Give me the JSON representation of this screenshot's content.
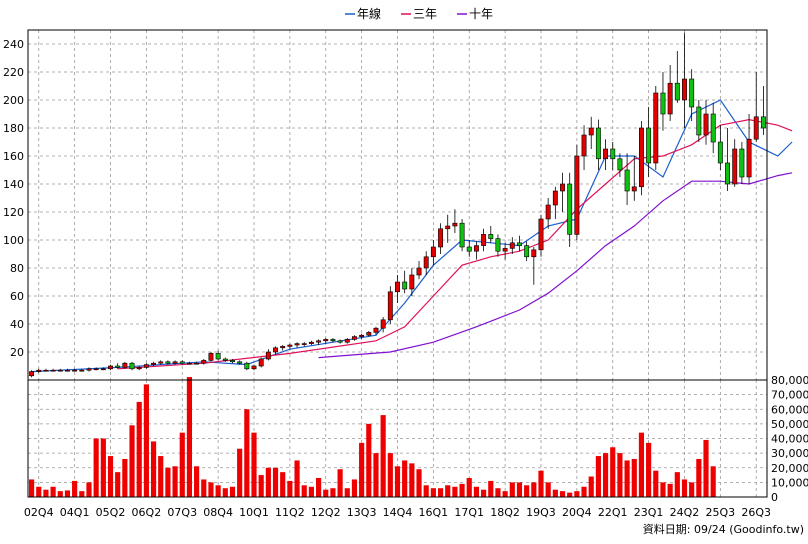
{
  "chart_data": [
    {
      "type": "candlestick",
      "legend": [
        {
          "name": "年線",
          "color": "#1a5fd0"
        },
        {
          "name": "三年",
          "color": "#e0105a"
        },
        {
          "name": "十年",
          "color": "#8010d0"
        }
      ],
      "ylim": [
        0,
        250
      ],
      "yticks": [
        20,
        40,
        60,
        80,
        100,
        120,
        140,
        160,
        180,
        200,
        220,
        240
      ],
      "xticks": [
        "02Q4",
        "04Q1",
        "05Q2",
        "06Q2",
        "07Q3",
        "08Q4",
        "10Q1",
        "11Q2",
        "12Q2",
        "13Q3",
        "14Q4",
        "16Q1",
        "17Q1",
        "18Q2",
        "19Q3",
        "20Q4",
        "22Q1",
        "23Q1",
        "24Q2",
        "25Q3",
        "26Q3"
      ],
      "grid": true,
      "legend_position": "top-center",
      "candles": [
        {
          "o": 3,
          "h": 7,
          "l": 2,
          "c": 6
        },
        {
          "o": 6,
          "h": 8,
          "l": 5,
          "c": 7
        },
        {
          "o": 7,
          "h": 8,
          "l": 6,
          "c": 7
        },
        {
          "o": 7,
          "h": 8,
          "l": 6,
          "c": 7
        },
        {
          "o": 7,
          "h": 8,
          "l": 6,
          "c": 7
        },
        {
          "o": 7,
          "h": 8,
          "l": 6,
          "c": 7
        },
        {
          "o": 7,
          "h": 8,
          "l": 6,
          "c": 7
        },
        {
          "o": 7,
          "h": 8,
          "l": 6,
          "c": 7
        },
        {
          "o": 7,
          "h": 9,
          "l": 6,
          "c": 8
        },
        {
          "o": 8,
          "h": 9,
          "l": 7,
          "c": 8
        },
        {
          "o": 8,
          "h": 9,
          "l": 7,
          "c": 8
        },
        {
          "o": 8,
          "h": 11,
          "l": 7,
          "c": 10
        },
        {
          "o": 10,
          "h": 12,
          "l": 8,
          "c": 9
        },
        {
          "o": 9,
          "h": 13,
          "l": 8,
          "c": 12
        },
        {
          "o": 12,
          "h": 13,
          "l": 7,
          "c": 8
        },
        {
          "o": 8,
          "h": 10,
          "l": 7,
          "c": 9
        },
        {
          "o": 9,
          "h": 12,
          "l": 8,
          "c": 11
        },
        {
          "o": 11,
          "h": 13,
          "l": 10,
          "c": 12
        },
        {
          "o": 12,
          "h": 14,
          "l": 11,
          "c": 13
        },
        {
          "o": 13,
          "h": 14,
          "l": 11,
          "c": 12
        },
        {
          "o": 12,
          "h": 14,
          "l": 11,
          "c": 13
        },
        {
          "o": 13,
          "h": 14,
          "l": 11,
          "c": 12
        },
        {
          "o": 12,
          "h": 13,
          "l": 11,
          "c": 12
        },
        {
          "o": 12,
          "h": 13,
          "l": 11,
          "c": 12
        },
        {
          "o": 12,
          "h": 15,
          "l": 11,
          "c": 14
        },
        {
          "o": 14,
          "h": 20,
          "l": 13,
          "c": 19
        },
        {
          "o": 19,
          "h": 21,
          "l": 14,
          "c": 15
        },
        {
          "o": 15,
          "h": 16,
          "l": 13,
          "c": 14
        },
        {
          "o": 14,
          "h": 15,
          "l": 12,
          "c": 13
        },
        {
          "o": 13,
          "h": 14,
          "l": 11,
          "c": 12
        },
        {
          "o": 12,
          "h": 13,
          "l": 7,
          "c": 8
        },
        {
          "o": 8,
          "h": 11,
          "l": 7,
          "c": 10
        },
        {
          "o": 10,
          "h": 16,
          "l": 9,
          "c": 15
        },
        {
          "o": 15,
          "h": 22,
          "l": 14,
          "c": 20
        },
        {
          "o": 20,
          "h": 24,
          "l": 18,
          "c": 23
        },
        {
          "o": 23,
          "h": 25,
          "l": 21,
          "c": 24
        },
        {
          "o": 24,
          "h": 26,
          "l": 22,
          "c": 25
        },
        {
          "o": 25,
          "h": 27,
          "l": 23,
          "c": 26
        },
        {
          "o": 26,
          "h": 27,
          "l": 24,
          "c": 26
        },
        {
          "o": 26,
          "h": 28,
          "l": 25,
          "c": 27
        },
        {
          "o": 27,
          "h": 29,
          "l": 25,
          "c": 28
        },
        {
          "o": 28,
          "h": 30,
          "l": 26,
          "c": 29
        },
        {
          "o": 29,
          "h": 30,
          "l": 27,
          "c": 28
        },
        {
          "o": 28,
          "h": 29,
          "l": 26,
          "c": 27
        },
        {
          "o": 27,
          "h": 30,
          "l": 26,
          "c": 29
        },
        {
          "o": 29,
          "h": 32,
          "l": 28,
          "c": 31
        },
        {
          "o": 31,
          "h": 33,
          "l": 29,
          "c": 32
        },
        {
          "o": 32,
          "h": 35,
          "l": 31,
          "c": 34
        },
        {
          "o": 34,
          "h": 38,
          "l": 32,
          "c": 37
        },
        {
          "o": 37,
          "h": 45,
          "l": 34,
          "c": 43
        },
        {
          "o": 43,
          "h": 67,
          "l": 40,
          "c": 63
        },
        {
          "o": 63,
          "h": 75,
          "l": 55,
          "c": 70
        },
        {
          "o": 70,
          "h": 78,
          "l": 62,
          "c": 65
        },
        {
          "o": 65,
          "h": 80,
          "l": 60,
          "c": 75
        },
        {
          "o": 75,
          "h": 85,
          "l": 72,
          "c": 80
        },
        {
          "o": 80,
          "h": 92,
          "l": 75,
          "c": 88
        },
        {
          "o": 88,
          "h": 100,
          "l": 82,
          "c": 95
        },
        {
          "o": 95,
          "h": 112,
          "l": 90,
          "c": 108
        },
        {
          "o": 108,
          "h": 118,
          "l": 98,
          "c": 110
        },
        {
          "o": 110,
          "h": 122,
          "l": 105,
          "c": 112
        },
        {
          "o": 112,
          "h": 115,
          "l": 92,
          "c": 95
        },
        {
          "o": 95,
          "h": 100,
          "l": 88,
          "c": 92
        },
        {
          "o": 92,
          "h": 99,
          "l": 86,
          "c": 96
        },
        {
          "o": 96,
          "h": 108,
          "l": 92,
          "c": 104
        },
        {
          "o": 104,
          "h": 110,
          "l": 98,
          "c": 101
        },
        {
          "o": 101,
          "h": 104,
          "l": 88,
          "c": 92
        },
        {
          "o": 92,
          "h": 98,
          "l": 86,
          "c": 94
        },
        {
          "o": 94,
          "h": 102,
          "l": 90,
          "c": 98
        },
        {
          "o": 98,
          "h": 103,
          "l": 92,
          "c": 96
        },
        {
          "o": 96,
          "h": 99,
          "l": 85,
          "c": 88
        },
        {
          "o": 88,
          "h": 95,
          "l": 68,
          "c": 93
        },
        {
          "o": 93,
          "h": 118,
          "l": 88,
          "c": 115
        },
        {
          "o": 115,
          "h": 130,
          "l": 108,
          "c": 125
        },
        {
          "o": 125,
          "h": 138,
          "l": 115,
          "c": 135
        },
        {
          "o": 135,
          "h": 148,
          "l": 120,
          "c": 140
        },
        {
          "o": 140,
          "h": 148,
          "l": 95,
          "c": 104
        },
        {
          "o": 104,
          "h": 168,
          "l": 100,
          "c": 160
        },
        {
          "o": 160,
          "h": 182,
          "l": 150,
          "c": 175
        },
        {
          "o": 175,
          "h": 188,
          "l": 165,
          "c": 180
        },
        {
          "o": 180,
          "h": 186,
          "l": 150,
          "c": 158
        },
        {
          "o": 158,
          "h": 172,
          "l": 150,
          "c": 165
        },
        {
          "o": 165,
          "h": 170,
          "l": 150,
          "c": 158
        },
        {
          "o": 158,
          "h": 162,
          "l": 145,
          "c": 150
        },
        {
          "o": 150,
          "h": 162,
          "l": 125,
          "c": 135
        },
        {
          "o": 135,
          "h": 160,
          "l": 128,
          "c": 138
        },
        {
          "o": 138,
          "h": 185,
          "l": 132,
          "c": 180
        },
        {
          "o": 180,
          "h": 195,
          "l": 145,
          "c": 155
        },
        {
          "o": 155,
          "h": 210,
          "l": 150,
          "c": 205
        },
        {
          "o": 205,
          "h": 220,
          "l": 178,
          "c": 190
        },
        {
          "o": 190,
          "h": 225,
          "l": 185,
          "c": 212
        },
        {
          "o": 212,
          "h": 235,
          "l": 198,
          "c": 200
        },
        {
          "o": 200,
          "h": 248,
          "l": 180,
          "c": 215
        },
        {
          "o": 215,
          "h": 222,
          "l": 185,
          "c": 195
        },
        {
          "o": 195,
          "h": 200,
          "l": 170,
          "c": 175
        },
        {
          "o": 175,
          "h": 200,
          "l": 168,
          "c": 190
        },
        {
          "o": 190,
          "h": 198,
          "l": 162,
          "c": 170
        },
        {
          "o": 170,
          "h": 182,
          "l": 150,
          "c": 155
        },
        {
          "o": 155,
          "h": 180,
          "l": 135,
          "c": 140
        },
        {
          "o": 140,
          "h": 172,
          "l": 138,
          "c": 165
        },
        {
          "o": 165,
          "h": 170,
          "l": 140,
          "c": 145
        },
        {
          "o": 145,
          "h": 190,
          "l": 140,
          "c": 172
        },
        {
          "o": 172,
          "h": 220,
          "l": 170,
          "c": 188
        },
        {
          "o": 188,
          "h": 210,
          "l": 175,
          "c": 180
        }
      ],
      "ma_year": [
        [
          0,
          6
        ],
        [
          12,
          9
        ],
        [
          24,
          13
        ],
        [
          30,
          11
        ],
        [
          36,
          22
        ],
        [
          48,
          32
        ],
        [
          52,
          55
        ],
        [
          56,
          82
        ],
        [
          60,
          100
        ],
        [
          64,
          98
        ],
        [
          68,
          96
        ],
        [
          72,
          110
        ],
        [
          76,
          115
        ],
        [
          80,
          160
        ],
        [
          84,
          160
        ],
        [
          88,
          145
        ],
        [
          92,
          190
        ],
        [
          96,
          200
        ],
        [
          100,
          170
        ],
        [
          104,
          160
        ],
        [
          106,
          170
        ]
      ],
      "ma_3yr": [
        [
          12,
          8
        ],
        [
          24,
          12
        ],
        [
          36,
          19
        ],
        [
          48,
          28
        ],
        [
          52,
          38
        ],
        [
          56,
          60
        ],
        [
          60,
          82
        ],
        [
          64,
          88
        ],
        [
          68,
          92
        ],
        [
          72,
          100
        ],
        [
          76,
          122
        ],
        [
          80,
          140
        ],
        [
          84,
          158
        ],
        [
          88,
          160
        ],
        [
          92,
          168
        ],
        [
          96,
          182
        ],
        [
          100,
          186
        ],
        [
          104,
          182
        ],
        [
          106,
          178
        ]
      ],
      "ma_10yr": [
        [
          40,
          16
        ],
        [
          50,
          20
        ],
        [
          56,
          27
        ],
        [
          62,
          38
        ],
        [
          68,
          50
        ],
        [
          72,
          62
        ],
        [
          76,
          78
        ],
        [
          80,
          96
        ],
        [
          84,
          110
        ],
        [
          88,
          128
        ],
        [
          92,
          142
        ],
        [
          96,
          142
        ],
        [
          100,
          140
        ],
        [
          104,
          146
        ],
        [
          106,
          148
        ]
      ]
    },
    {
      "type": "bar",
      "ylim": [
        0,
        80000
      ],
      "yticks": [
        0,
        10000,
        20000,
        30000,
        40000,
        50000,
        60000,
        70000,
        80000
      ],
      "ytick_labels": [
        "0",
        "10,000",
        "20,000",
        "30,000",
        "40,000",
        "50,000",
        "60,000",
        "70,000",
        "80,000"
      ],
      "color": "#ee0000",
      "values": [
        12000,
        7000,
        5000,
        7000,
        4000,
        4500,
        11000,
        4000,
        10000,
        40000,
        40000,
        28000,
        17000,
        26000,
        49000,
        65000,
        77000,
        38000,
        28000,
        20000,
        21000,
        44000,
        82000,
        21000,
        12000,
        10000,
        8000,
        6000,
        7000,
        33000,
        60000,
        44000,
        15000,
        20000,
        20000,
        17000,
        11000,
        25000,
        8000,
        7000,
        13000,
        5000,
        6000,
        19000,
        6000,
        12000,
        37000,
        50000,
        30000,
        56000,
        30000,
        21000,
        25000,
        23000,
        19000,
        8000,
        6000,
        6000,
        8000,
        7000,
        9000,
        13000,
        7000,
        5000,
        11000,
        6000,
        4000,
        10000,
        10000,
        8000,
        10000,
        18000,
        10000,
        5000,
        4000,
        3000,
        4000,
        7000,
        14000,
        28000,
        30000,
        34000,
        30000,
        25000,
        26000,
        44000,
        37000,
        18000,
        10000,
        9000,
        17000,
        12000,
        10000,
        26000,
        39000,
        21000
      ],
      "footer": "資料日期: 09/24  (Goodinfo.tw)"
    }
  ]
}
